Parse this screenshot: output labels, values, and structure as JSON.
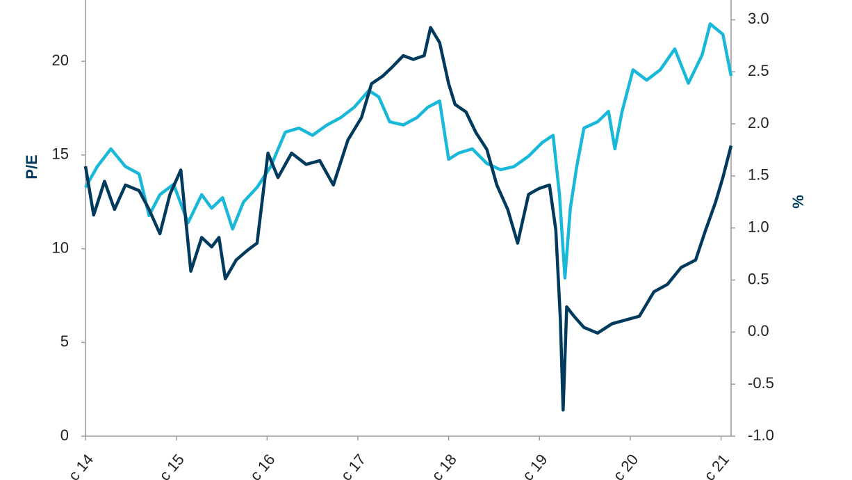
{
  "chart_data": {
    "type": "line",
    "ylabel": "P/E",
    "y2label": "%",
    "xlim": [
      0,
      7.11
    ],
    "xticks": [
      {
        "value": 0,
        "label": "c 14"
      },
      {
        "value": 1,
        "label": "c 15"
      },
      {
        "value": 2,
        "label": "c 16"
      },
      {
        "value": 3,
        "label": "c 17"
      },
      {
        "value": 4,
        "label": "c 18"
      },
      {
        "value": 5,
        "label": "c 19"
      },
      {
        "value": 6,
        "label": "c 20"
      },
      {
        "value": 7,
        "label": "c 21"
      }
    ],
    "ylim": [
      0,
      23.27
    ],
    "yticks": [
      0,
      5,
      10,
      15,
      20
    ],
    "y2lim": [
      -1,
      3.19
    ],
    "y2ticks": [
      {
        "value": -1,
        "label": "-1.0"
      },
      -0.5,
      {
        "value": 0,
        "label": "0.0"
      },
      0.5,
      {
        "value": 1,
        "label": "1.0"
      },
      1.5,
      {
        "value": 2,
        "label": "2.0"
      },
      2.5,
      {
        "value": 3,
        "label": "3.0"
      }
    ],
    "series": [
      {
        "color": "#1ab8d8",
        "axis": "y2",
        "x": [
          0,
          0.13,
          0.28,
          0.44,
          0.59,
          0.7,
          0.82,
          0.97,
          1.13,
          1.28,
          1.39,
          1.51,
          1.62,
          1.74,
          1.89,
          2.04,
          2.2,
          2.35,
          2.5,
          2.66,
          2.81,
          2.96,
          3.12,
          3.23,
          3.35,
          3.5,
          3.65,
          3.77,
          3.9,
          4.0,
          4.11,
          4.26,
          4.42,
          4.57,
          4.72,
          4.88,
          5.03,
          5.15,
          5.22,
          5.28,
          5.34,
          5.41,
          5.49,
          5.64,
          5.76,
          5.83,
          5.91,
          6.03,
          6.18,
          6.33,
          6.49,
          6.64,
          6.79,
          6.88,
          7.02,
          7.11
        ],
        "values": [
          1.39,
          1.59,
          1.76,
          1.59,
          1.52,
          1.12,
          1.32,
          1.42,
          1.05,
          1.32,
          1.19,
          1.29,
          0.99,
          1.25,
          1.39,
          1.59,
          1.92,
          1.96,
          1.89,
          1.99,
          2.06,
          2.16,
          2.32,
          2.26,
          2.02,
          1.99,
          2.06,
          2.16,
          2.22,
          1.66,
          1.72,
          1.76,
          1.62,
          1.56,
          1.59,
          1.69,
          1.82,
          1.89,
          1.32,
          0.52,
          1.19,
          1.59,
          1.96,
          2.02,
          2.12,
          1.76,
          2.12,
          2.52,
          2.42,
          2.52,
          2.72,
          2.39,
          2.66,
          2.96,
          2.86,
          2.46
        ]
      },
      {
        "color": "#003a5d",
        "axis": "y",
        "x": [
          0,
          0.09,
          0.21,
          0.32,
          0.44,
          0.59,
          0.7,
          0.82,
          0.93,
          1.05,
          1.16,
          1.28,
          1.39,
          1.47,
          1.54,
          1.66,
          1.78,
          1.89,
          2.01,
          2.12,
          2.27,
          2.43,
          2.58,
          2.73,
          2.89,
          3.04,
          3.15,
          3.27,
          3.38,
          3.5,
          3.61,
          3.73,
          3.8,
          3.9,
          4.0,
          4.07,
          4.19,
          4.3,
          4.42,
          4.53,
          4.65,
          4.76,
          4.88,
          4.99,
          5.11,
          5.18,
          5.23,
          5.26,
          5.3,
          5.38,
          5.49,
          5.64,
          5.8,
          5.95,
          6.1,
          6.26,
          6.41,
          6.56,
          6.72,
          6.83,
          6.94,
          7.02,
          7.11
        ],
        "values": [
          14.4,
          11.8,
          13.6,
          12.1,
          13.4,
          13.1,
          12.1,
          10.8,
          12.9,
          14.2,
          8.8,
          10.6,
          10.1,
          10.6,
          8.4,
          9.4,
          9.9,
          10.3,
          15.1,
          13.8,
          15.1,
          14.5,
          14.7,
          13.4,
          15.8,
          17.0,
          18.8,
          19.2,
          19.7,
          20.3,
          20.1,
          20.3,
          21.8,
          21.0,
          18.8,
          17.7,
          17.3,
          16.2,
          15.3,
          13.4,
          12.1,
          10.3,
          12.9,
          13.2,
          13.4,
          11.0,
          6.2,
          1.4,
          6.9,
          6.4,
          5.8,
          5.5,
          6.0,
          6.2,
          6.4,
          7.7,
          8.1,
          9.0,
          9.4,
          11.0,
          12.5,
          13.8,
          15.5
        ]
      }
    ]
  }
}
